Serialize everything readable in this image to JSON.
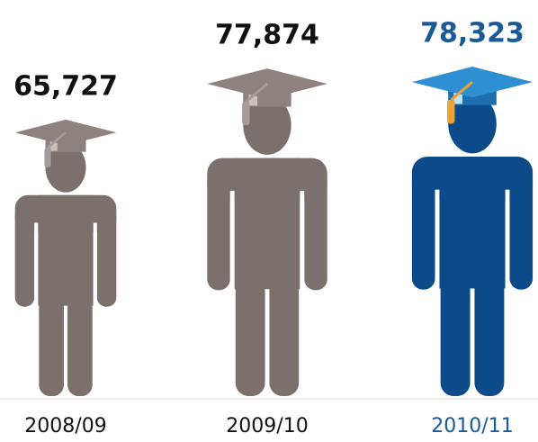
{
  "chart_data": {
    "type": "pictogram",
    "categories": [
      "2008/09",
      "2009/10",
      "2010/11"
    ],
    "values": [
      65727,
      77874,
      78323
    ],
    "value_labels": [
      "65,727",
      "77,874",
      "78,323"
    ],
    "colors": [
      "#7b706c",
      "#7b706c",
      "#0c4a8a"
    ],
    "label_colors": [
      "#111111",
      "#111111",
      "#1a5a96"
    ]
  }
}
